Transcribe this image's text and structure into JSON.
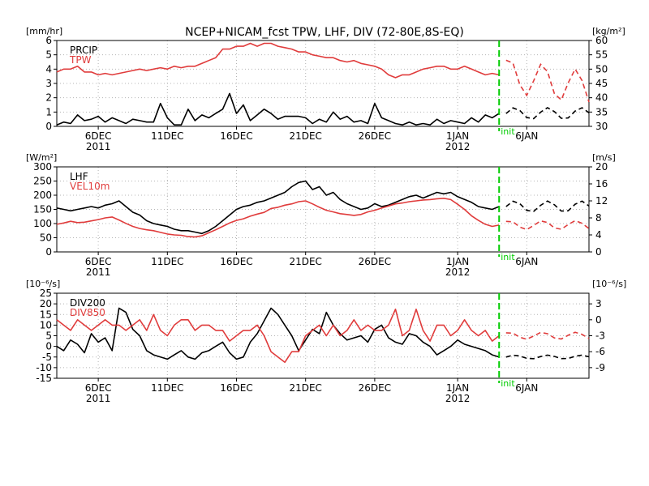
{
  "title": "NCEP+NICAM_fcst TPW, LHF, DIV (72-80E,8S-EQ)",
  "x_tick_labels": [
    "6DEC",
    "11DEC",
    "16DEC",
    "21DEC",
    "26DEC",
    "1JAN",
    "6JAN"
  ],
  "year_labels": [
    "2011",
    "2012"
  ],
  "init_label": "init",
  "colors": {
    "black": "#000000",
    "red": "#e03c3c",
    "init_line": "#00cc00",
    "grid": "#b4b4b4"
  },
  "chart_data": [
    {
      "type": "line",
      "panel": "top",
      "left_unit": "[mm/hr]",
      "right_unit": "[kg/m²]",
      "left_ticks": [
        "0",
        "1",
        "2",
        "3",
        "4",
        "5",
        "6"
      ],
      "right_ticks": [
        "30",
        "35",
        "40",
        "45",
        "50",
        "55",
        "60"
      ],
      "ylim_left": [
        0,
        6
      ],
      "ylim_right": [
        30,
        60
      ],
      "x_range_days": [
        3,
        41.5
      ],
      "init_day": 35,
      "grid": true,
      "legend_position": "top-left",
      "series": [
        {
          "name": "PRCIP",
          "axis": "left",
          "color": "black",
          "x": [
            3,
            3.5,
            4,
            4.5,
            5,
            5.5,
            6,
            6.5,
            7,
            7.5,
            8,
            8.5,
            9,
            9.5,
            10,
            10.5,
            11,
            11.5,
            12,
            12.5,
            13,
            13.5,
            14,
            14.5,
            15,
            15.5,
            16,
            16.5,
            17,
            17.5,
            18,
            18.5,
            19,
            19.5,
            20,
            20.5,
            21,
            21.5,
            22,
            22.5,
            23,
            23.5,
            24,
            24.5,
            25,
            25.5,
            26,
            26.5,
            27,
            27.5,
            28,
            28.5,
            29,
            29.5,
            30,
            30.5,
            31,
            31.5,
            32,
            32.5,
            33,
            33.5,
            34,
            34.5,
            35
          ],
          "y": [
            0.1,
            0.3,
            0.2,
            0.8,
            0.4,
            0.5,
            0.7,
            0.3,
            0.6,
            0.4,
            0.2,
            0.5,
            0.4,
            0.3,
            0.3,
            1.6,
            0.6,
            0.1,
            0.1,
            1.2,
            0.4,
            0.8,
            0.6,
            0.9,
            1.2,
            2.3,
            0.9,
            1.5,
            0.4,
            0.8,
            1.2,
            0.9,
            0.5,
            0.7,
            0.7,
            0.7,
            0.6,
            0.2,
            0.5,
            0.3,
            1.0,
            0.5,
            0.7,
            0.3,
            0.4,
            0.2,
            1.6,
            0.6,
            0.4,
            0.2,
            0.1,
            0.3,
            0.1,
            0.2,
            0.1,
            0.5,
            0.2,
            0.4,
            0.3,
            0.2,
            0.6,
            0.3,
            0.8,
            0.6,
            0.9
          ]
        },
        {
          "name": "TPW",
          "axis": "right",
          "color": "red",
          "x": [
            3,
            3.5,
            4,
            4.5,
            5,
            5.5,
            6,
            6.5,
            7,
            7.5,
            8,
            8.5,
            9,
            9.5,
            10,
            10.5,
            11,
            11.5,
            12,
            12.5,
            13,
            13.5,
            14,
            14.5,
            15,
            15.5,
            16,
            16.5,
            17,
            17.5,
            18,
            18.5,
            19,
            19.5,
            20,
            20.5,
            21,
            21.5,
            22,
            22.5,
            23,
            23.5,
            24,
            24.5,
            25,
            25.5,
            26,
            26.5,
            27,
            27.5,
            28,
            28.5,
            29,
            29.5,
            30,
            30.5,
            31,
            31.5,
            32,
            32.5,
            33,
            33.5,
            34,
            34.5,
            35
          ],
          "y": [
            49,
            50,
            50,
            51,
            49,
            49,
            48,
            48.5,
            48,
            48.5,
            49,
            49.5,
            50,
            49.5,
            50,
            50.5,
            50,
            51,
            50.5,
            51,
            51,
            52,
            53,
            54,
            57,
            57,
            58,
            58,
            59,
            58,
            59,
            59,
            58,
            57.5,
            57,
            56,
            56,
            55,
            54.5,
            54,
            54,
            53,
            52.5,
            53,
            52,
            51.5,
            51,
            50,
            48,
            47,
            48,
            48,
            49,
            50,
            50.5,
            51,
            51,
            50,
            50,
            51,
            50,
            49,
            48,
            48.5,
            48
          ]
        }
      ]
    },
    {
      "type": "line",
      "panel": "middle",
      "left_unit": "[W/m²]",
      "right_unit": "[m/s]",
      "left_ticks": [
        "0",
        "50",
        "100",
        "150",
        "200",
        "250",
        "300"
      ],
      "right_ticks": [
        "0",
        "4",
        "8",
        "12",
        "16",
        "20"
      ],
      "ylim_left": [
        0,
        300
      ],
      "ylim_right": [
        0,
        20
      ],
      "x_range_days": [
        3,
        41.5
      ],
      "init_day": 35,
      "grid": true,
      "legend_position": "top-left",
      "series": [
        {
          "name": "LHF",
          "axis": "left",
          "color": "black",
          "x": [
            3,
            3.5,
            4,
            4.5,
            5,
            5.5,
            6,
            6.5,
            7,
            7.5,
            8,
            8.5,
            9,
            9.5,
            10,
            10.5,
            11,
            11.5,
            12,
            12.5,
            13,
            13.5,
            14,
            14.5,
            15,
            15.5,
            16,
            16.5,
            17,
            17.5,
            18,
            18.5,
            19,
            19.5,
            20,
            20.5,
            21,
            21.5,
            22,
            22.5,
            23,
            23.5,
            24,
            24.5,
            25,
            25.5,
            26,
            26.5,
            27,
            27.5,
            28,
            28.5,
            29,
            29.5,
            30,
            30.5,
            31,
            31.5,
            32,
            32.5,
            33,
            33.5,
            34,
            34.5,
            35
          ],
          "y": [
            155,
            150,
            145,
            150,
            155,
            160,
            155,
            165,
            170,
            180,
            160,
            140,
            130,
            110,
            100,
            95,
            90,
            80,
            75,
            75,
            70,
            65,
            75,
            90,
            110,
            130,
            150,
            160,
            165,
            175,
            180,
            190,
            200,
            210,
            230,
            245,
            250,
            220,
            230,
            200,
            210,
            185,
            170,
            160,
            150,
            155,
            170,
            160,
            165,
            175,
            185,
            195,
            200,
            190,
            200,
            210,
            205,
            210,
            195,
            185,
            175,
            160,
            155,
            150,
            160
          ]
        },
        {
          "name": "VEL10m",
          "axis": "right",
          "color": "red",
          "x": [
            3,
            3.5,
            4,
            4.5,
            5,
            5.5,
            6,
            6.5,
            7,
            7.5,
            8,
            8.5,
            9,
            9.5,
            10,
            10.5,
            11,
            11.5,
            12,
            12.5,
            13,
            13.5,
            14,
            14.5,
            15,
            15.5,
            16,
            16.5,
            17,
            17.5,
            18,
            18.5,
            19,
            19.5,
            20,
            20.5,
            21,
            21.5,
            22,
            22.5,
            23,
            23.5,
            24,
            24.5,
            25,
            25.5,
            26,
            26.5,
            27,
            27.5,
            28,
            28.5,
            29,
            29.5,
            30,
            30.5,
            31,
            31.5,
            32,
            32.5,
            33,
            33.5,
            34,
            34.5,
            35
          ],
          "y": [
            6.5,
            6.8,
            7.2,
            6.9,
            7.0,
            7.3,
            7.6,
            8.0,
            8.2,
            7.5,
            6.7,
            6.0,
            5.5,
            5.2,
            5.0,
            4.6,
            4.2,
            4.0,
            3.9,
            3.6,
            3.5,
            3.8,
            4.5,
            5.2,
            6.0,
            6.8,
            7.4,
            7.8,
            8.4,
            8.9,
            9.3,
            10.2,
            10.5,
            11.0,
            11.3,
            11.8,
            12.0,
            11.3,
            10.5,
            9.8,
            9.4,
            9.0,
            8.8,
            8.6,
            8.8,
            9.4,
            9.8,
            10.3,
            10.8,
            11.3,
            11.5,
            11.8,
            12.0,
            12.2,
            12.3,
            12.5,
            12.6,
            12.3,
            11.2,
            10.0,
            8.5,
            7.4,
            6.5,
            6.0,
            6.3
          ]
        }
      ]
    },
    {
      "type": "line",
      "panel": "bottom",
      "left_unit": "[10⁻⁶/s]",
      "right_unit": "[10⁻⁶/s]",
      "left_ticks": [
        "-15",
        "-10",
        "-5",
        "0",
        "5",
        "10",
        "15",
        "20",
        "25"
      ],
      "right_ticks": [
        "-9",
        "-6",
        "-3",
        "0",
        "3"
      ],
      "ylim_left": [
        -15,
        25
      ],
      "ylim_right": [
        -11,
        5
      ],
      "x_range_days": [
        3,
        41.5
      ],
      "init_day": 35,
      "grid": true,
      "legend_position": "top-left",
      "series": [
        {
          "name": "DIV200",
          "axis": "left",
          "color": "black",
          "x": [
            3,
            3.5,
            4,
            4.5,
            5,
            5.5,
            6,
            6.5,
            7,
            7.5,
            8,
            8.5,
            9,
            9.5,
            10,
            10.5,
            11,
            11.5,
            12,
            12.5,
            13,
            13.5,
            14,
            14.5,
            15,
            15.5,
            16,
            16.5,
            17,
            17.5,
            18,
            18.5,
            19,
            19.5,
            20,
            20.5,
            21,
            21.5,
            22,
            22.5,
            23,
            23.5,
            24,
            24.5,
            25,
            25.5,
            26,
            26.5,
            27,
            27.5,
            28,
            28.5,
            29,
            29.5,
            30,
            30.5,
            31,
            31.5,
            32,
            32.5,
            33,
            33.5,
            34,
            34.5,
            35
          ],
          "y": [
            0,
            -2,
            3,
            1,
            -3,
            6,
            2,
            4,
            -2,
            18,
            16,
            8,
            5,
            -2,
            -4,
            -5,
            -6,
            -4,
            -2,
            -5,
            -6,
            -3,
            -2,
            0,
            2,
            -3,
            -6,
            -5,
            2,
            6,
            12,
            18,
            15,
            10,
            5,
            -2,
            3,
            8,
            6,
            16,
            10,
            6,
            3,
            4,
            5,
            2,
            8,
            10,
            4,
            2,
            1,
            6,
            5,
            2,
            0,
            -4,
            -2,
            0,
            3,
            1,
            0,
            -1,
            -2,
            -4,
            -5
          ]
        },
        {
          "name": "DIV850",
          "axis": "right",
          "color": "red",
          "x": [
            3,
            3.5,
            4,
            4.5,
            5,
            5.5,
            6,
            6.5,
            7,
            7.5,
            8,
            8.5,
            9,
            9.5,
            10,
            10.5,
            11,
            11.5,
            12,
            12.5,
            13,
            13.5,
            14,
            14.5,
            15,
            15.5,
            16,
            16.5,
            17,
            17.5,
            18,
            18.5,
            19,
            19.5,
            20,
            20.5,
            21,
            21.5,
            22,
            22.5,
            23,
            23.5,
            24,
            24.5,
            25,
            25.5,
            26,
            26.5,
            27,
            27.5,
            28,
            28.5,
            29,
            29.5,
            30,
            30.5,
            31,
            31.5,
            32,
            32.5,
            33,
            33.5,
            34,
            34.5,
            35
          ],
          "y": [
            0,
            -1,
            -2,
            0,
            -1,
            -2,
            -1,
            0,
            -1,
            -1,
            -2,
            -1,
            0,
            -2,
            1,
            -2,
            -3,
            -1,
            0,
            0,
            -2,
            -1,
            -1,
            -2,
            -2,
            -4,
            -3,
            -2,
            -2,
            -1,
            -3,
            -6,
            -7,
            -8,
            -6,
            -6,
            -3,
            -2,
            -1,
            -3,
            -1,
            -3,
            -2,
            0,
            -2,
            -1,
            -2,
            -2,
            -1,
            2,
            -3,
            -2,
            2,
            -2,
            -4,
            -1,
            -1,
            -3,
            -2,
            0,
            -2,
            -3,
            -2,
            -4,
            -3
          ]
        }
      ]
    }
  ]
}
